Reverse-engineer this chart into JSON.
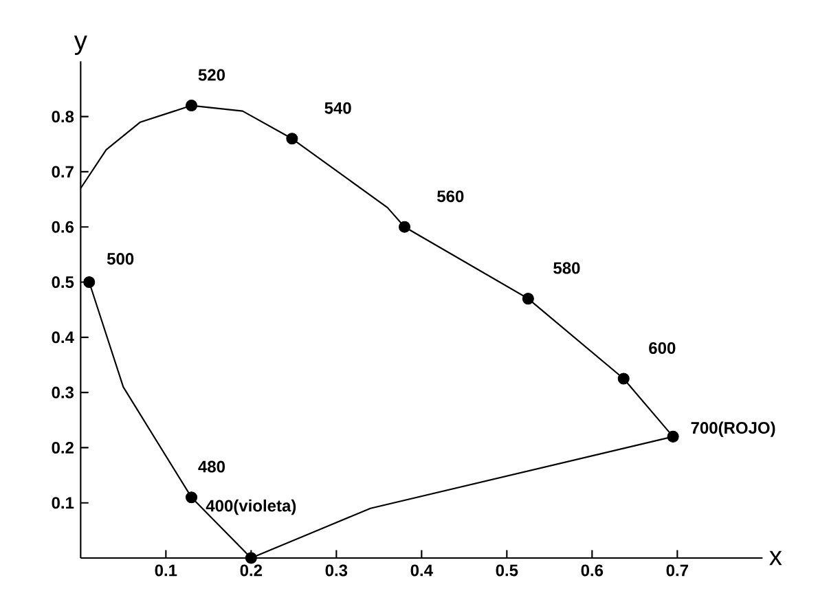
{
  "chart_data": {
    "type": "line",
    "xlabel": "x",
    "ylabel": "y",
    "xlim": [
      0,
      0.8
    ],
    "ylim": [
      0,
      0.9
    ],
    "xticks": [
      0.1,
      0.2,
      0.3,
      0.4,
      0.5,
      0.6,
      0.7
    ],
    "yticks": [
      0.1,
      0.2,
      0.3,
      0.4,
      0.5,
      0.6,
      0.7,
      0.8
    ],
    "series": [
      {
        "color": "#000000",
        "line_style": "solid",
        "marker": "none",
        "x": [
          0,
          0.03,
          0.07,
          0.11,
          0.13,
          0.19,
          0.248,
          0.36,
          0.38,
          0.525,
          0.637,
          0.695,
          0.34,
          0.2,
          0.13,
          0.05,
          0.01
        ],
        "values": [
          0.67,
          0.74,
          0.79,
          0.81,
          0.82,
          0.81,
          0.76,
          0.635,
          0.6,
          0.47,
          0.325,
          0.22,
          0.09,
          0.0,
          0.11,
          0.31,
          0.5
        ]
      },
      {
        "type": "scatter",
        "color": "#000000",
        "marker": "circle",
        "x": [
          0.01,
          0.13,
          0.248,
          0.38,
          0.525,
          0.637,
          0.695,
          0.13,
          0.2
        ],
        "values": [
          0.5,
          0.82,
          0.76,
          0.6,
          0.47,
          0.325,
          0.22,
          0.11,
          0.0
        ]
      }
    ],
    "annotations": [
      {
        "text": "500",
        "x": 0.01,
        "y": 0.5
      },
      {
        "text": "520",
        "x": 0.13,
        "y": 0.82
      },
      {
        "text": "540",
        "x": 0.248,
        "y": 0.76
      },
      {
        "text": "560",
        "x": 0.38,
        "y": 0.6
      },
      {
        "text": "580",
        "x": 0.525,
        "y": 0.47
      },
      {
        "text": "600",
        "x": 0.637,
        "y": 0.325
      },
      {
        "text": "700(ROJO)",
        "x": 0.695,
        "y": 0.22
      },
      {
        "text": "480",
        "x": 0.13,
        "y": 0.11
      },
      {
        "text": "400(violeta)",
        "x": 0.2,
        "y": 0.0
      }
    ]
  }
}
